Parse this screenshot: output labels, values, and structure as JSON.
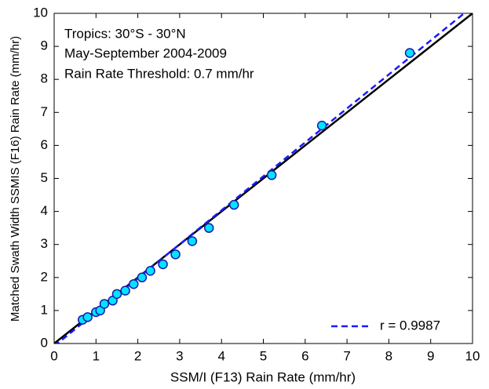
{
  "chart_data": {
    "type": "scatter",
    "annotations": [
      "Tropics: 30°S - 30°N",
      "May-September 2004-2009",
      "Rain Rate Threshold: 0.7 mm/hr"
    ],
    "xlabel": "SSM/I (F13) Rain Rate (mm/hr)",
    "ylabel": "Matched Swath Width SSMIS (F16) Rain Rate (mm/hr)",
    "xlim": [
      0,
      10
    ],
    "ylim": [
      0,
      10
    ],
    "xticks": [
      0,
      1,
      2,
      3,
      4,
      5,
      6,
      7,
      8,
      9,
      10
    ],
    "yticks": [
      0,
      1,
      2,
      3,
      4,
      5,
      6,
      7,
      8,
      9,
      10
    ],
    "legend": "lower right",
    "series": [
      {
        "type": "scatter",
        "color": "#00e5ff",
        "x": [
          0.68,
          0.8,
          1.0,
          1.1,
          1.2,
          1.4,
          1.5,
          1.7,
          1.9,
          2.1,
          2.3,
          2.6,
          2.9,
          3.3,
          3.7,
          4.3,
          5.2,
          6.4,
          8.5
        ],
        "values": [
          0.72,
          0.8,
          0.95,
          1.0,
          1.2,
          1.3,
          1.5,
          1.6,
          1.8,
          2.0,
          2.2,
          2.4,
          2.7,
          3.1,
          3.5,
          4.2,
          5.1,
          6.6,
          8.8
        ]
      },
      {
        "type": "line",
        "color": "#000000",
        "x": [
          0,
          10
        ],
        "values": [
          0,
          10
        ]
      },
      {
        "type": "line",
        "dash": true,
        "name": "r = 0.9987",
        "color": "#1a1aff",
        "x": [
          0,
          9.8
        ],
        "values": [
          -0.08,
          10
        ]
      }
    ]
  }
}
